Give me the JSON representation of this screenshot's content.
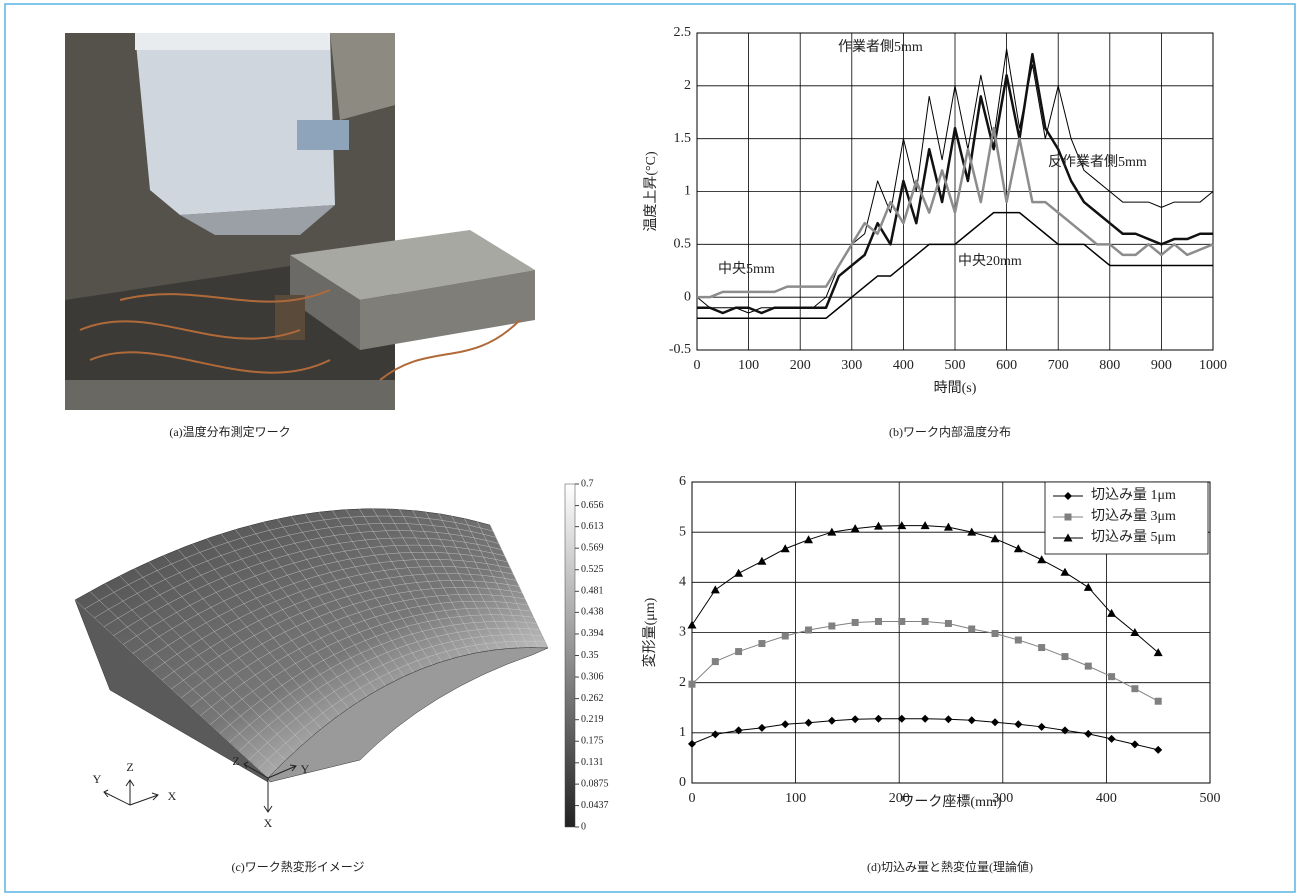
{
  "photo": {
    "caption": "(a)温度分布測定ワーク"
  },
  "deformation_image": {
    "caption": "(c)ワーク熱変形イメージ",
    "colorbar": {
      "lim": [
        0,
        0.7
      ],
      "ticks": [
        0.7,
        0.656,
        0.613,
        0.569,
        0.525,
        0.481,
        0.438,
        0.394,
        0.35,
        0.306,
        0.262,
        0.219,
        0.175,
        0.131,
        0.0875,
        0.0437,
        0
      ]
    },
    "axis_labels": {
      "global": [
        "Y",
        "Z",
        "X"
      ],
      "local": [
        "Z",
        "Y",
        "X"
      ]
    }
  },
  "chart_data": [
    {
      "type": "line",
      "caption": "(b)ワーク内部温度分布",
      "xlabel": "時間(s)",
      "ylabel": "温度上昇(°C)",
      "xlim": [
        0,
        1000
      ],
      "ylim": [
        -0.5,
        2.5
      ],
      "xticks": [
        0,
        100,
        200,
        300,
        400,
        500,
        600,
        700,
        800,
        900,
        1000
      ],
      "yticks": [
        -0.5,
        0,
        0.5,
        1,
        1.5,
        2,
        2.5
      ],
      "grid": true,
      "legend": false,
      "x": [
        0,
        25,
        50,
        75,
        100,
        125,
        150,
        175,
        200,
        225,
        250,
        275,
        300,
        325,
        350,
        375,
        400,
        425,
        450,
        475,
        500,
        525,
        550,
        575,
        600,
        625,
        650,
        675,
        700,
        725,
        750,
        775,
        800,
        825,
        850,
        875,
        900,
        925,
        950,
        975,
        1000
      ],
      "series": [
        {
          "name": "作業者側5mm",
          "color": "#000000",
          "width": 1,
          "values": [
            0,
            -0.1,
            -0.1,
            -0.1,
            -0.15,
            -0.1,
            -0.1,
            -0.1,
            -0.1,
            -0.1,
            0,
            0.3,
            0.5,
            0.6,
            1.1,
            0.8,
            1.5,
            1.0,
            1.9,
            1.3,
            2.0,
            1.4,
            2.1,
            1.5,
            2.35,
            1.6,
            2.2,
            1.5,
            2.0,
            1.5,
            1.2,
            1.1,
            1.0,
            0.9,
            0.9,
            0.9,
            0.85,
            0.9,
            0.9,
            0.9,
            1.0
          ]
        },
        {
          "name": "反作業者側5mm",
          "color": "#111111",
          "width": 2.5,
          "values": [
            -0.1,
            -0.1,
            -0.15,
            -0.1,
            -0.1,
            -0.15,
            -0.1,
            -0.1,
            -0.1,
            -0.1,
            -0.1,
            0.2,
            0.3,
            0.4,
            0.7,
            0.5,
            1.1,
            0.7,
            1.4,
            0.9,
            1.6,
            1.1,
            1.9,
            1.4,
            2.1,
            1.5,
            2.3,
            1.6,
            1.4,
            1.1,
            0.9,
            0.8,
            0.7,
            0.6,
            0.6,
            0.55,
            0.5,
            0.55,
            0.55,
            0.6,
            0.6
          ]
        },
        {
          "name": "中央5mm",
          "color": "#8c8c8c",
          "width": 2.5,
          "values": [
            0,
            0,
            0.05,
            0.05,
            0.05,
            0.05,
            0.05,
            0.1,
            0.1,
            0.1,
            0.1,
            0.3,
            0.5,
            0.7,
            0.6,
            0.9,
            0.7,
            1.1,
            0.8,
            1.2,
            0.8,
            1.4,
            0.9,
            1.6,
            0.9,
            1.5,
            0.9,
            0.9,
            0.8,
            0.7,
            0.6,
            0.5,
            0.5,
            0.4,
            0.4,
            0.5,
            0.4,
            0.5,
            0.4,
            0.45,
            0.5
          ]
        },
        {
          "name": "中央20mm",
          "color": "#000000",
          "width": 1.5,
          "values": [
            -0.2,
            -0.2,
            -0.2,
            -0.2,
            -0.2,
            -0.2,
            -0.2,
            -0.2,
            -0.2,
            -0.2,
            -0.2,
            -0.1,
            0,
            0.1,
            0.2,
            0.2,
            0.3,
            0.4,
            0.5,
            0.5,
            0.5,
            0.6,
            0.7,
            0.8,
            0.8,
            0.8,
            0.7,
            0.6,
            0.5,
            0.5,
            0.5,
            0.4,
            0.3,
            0.3,
            0.3,
            0.3,
            0.3,
            0.3,
            0.3,
            0.3,
            0.3
          ]
        }
      ]
    },
    {
      "type": "line",
      "caption": "(d)切込み量と熱変位量(理論値)",
      "xlabel": "ワーク座標(mm)",
      "ylabel": "変形量(μm)",
      "xlim": [
        0,
        500
      ],
      "ylim": [
        0,
        6
      ],
      "xticks": [
        0,
        100,
        200,
        300,
        400,
        500
      ],
      "yticks": [
        0,
        1,
        2,
        3,
        4,
        5,
        6
      ],
      "grid": true,
      "legend": "upper right",
      "x": [
        0,
        22.5,
        45,
        67.5,
        90,
        112.5,
        135,
        157.5,
        180,
        202.5,
        225,
        247.5,
        270,
        292.5,
        315,
        337.5,
        360,
        382.5,
        405,
        427.5,
        450
      ],
      "series": [
        {
          "name": "切込み量 1μm",
          "color": "#000000",
          "width": 1,
          "marker": "diamond",
          "values": [
            0.78,
            0.97,
            1.05,
            1.1,
            1.17,
            1.2,
            1.24,
            1.27,
            1.28,
            1.28,
            1.28,
            1.27,
            1.25,
            1.21,
            1.17,
            1.12,
            1.05,
            0.98,
            0.88,
            0.77,
            0.66
          ]
        },
        {
          "name": "切込み量 3μm",
          "color": "#808080",
          "width": 1,
          "marker": "square",
          "values": [
            1.97,
            2.42,
            2.62,
            2.78,
            2.93,
            3.05,
            3.13,
            3.2,
            3.22,
            3.22,
            3.22,
            3.18,
            3.07,
            2.98,
            2.85,
            2.7,
            2.52,
            2.33,
            2.12,
            1.88,
            1.63
          ]
        },
        {
          "name": "切込み量 5μm",
          "color": "#000000",
          "width": 1,
          "marker": "triangle",
          "values": [
            3.15,
            3.85,
            4.18,
            4.42,
            4.67,
            4.85,
            5.0,
            5.07,
            5.12,
            5.13,
            5.13,
            5.1,
            5.0,
            4.87,
            4.67,
            4.45,
            4.2,
            3.9,
            3.38,
            3.0,
            2.6
          ]
        }
      ]
    }
  ]
}
